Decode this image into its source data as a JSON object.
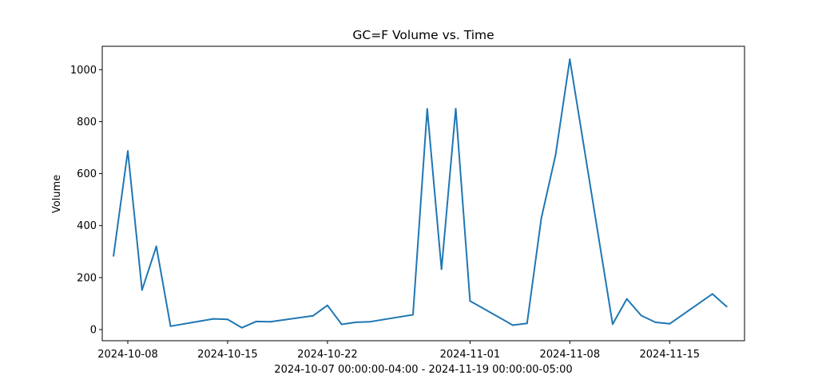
{
  "chart_data": {
    "type": "line",
    "title": "GC=F Volume vs. Time",
    "xlabel": "2024-10-07 00:00:00-04:00 - 2024-11-19 00:00:00-05:00",
    "ylabel": "Volume",
    "ylim": [
      -43,
      1090
    ],
    "xlim": [
      "2024-10-06T05:00",
      "2024-11-20T06:00"
    ],
    "grid": false,
    "x_ticks": [
      "2024-10-08",
      "2024-10-15",
      "2024-10-22",
      "2024-11-01",
      "2024-11-08",
      "2024-11-15"
    ],
    "y_ticks": [
      0,
      200,
      400,
      600,
      800,
      1000
    ],
    "line_color": "#1f77b4",
    "series": [
      {
        "x": [
          "2024-10-07",
          "2024-10-08",
          "2024-10-09",
          "2024-10-10",
          "2024-10-11",
          "2024-10-14",
          "2024-10-15",
          "2024-10-16",
          "2024-10-17",
          "2024-10-18",
          "2024-10-21",
          "2024-10-22",
          "2024-10-23",
          "2024-10-24",
          "2024-10-25",
          "2024-10-28",
          "2024-10-29",
          "2024-10-30",
          "2024-10-31",
          "2024-11-01",
          "2024-11-04",
          "2024-11-05",
          "2024-11-06",
          "2024-11-07",
          "2024-11-08",
          "2024-11-11",
          "2024-11-12",
          "2024-11-13",
          "2024-11-14",
          "2024-11-15",
          "2024-11-18",
          "2024-11-19"
        ],
        "y": [
          283,
          687,
          152,
          320,
          13,
          41,
          39,
          7,
          31,
          30,
          53,
          93,
          20,
          28,
          30,
          57,
          849,
          232,
          850,
          110,
          17,
          24,
          428,
          672,
          1040,
          21,
          118,
          54,
          28,
          22,
          137,
          88
        ]
      }
    ]
  }
}
